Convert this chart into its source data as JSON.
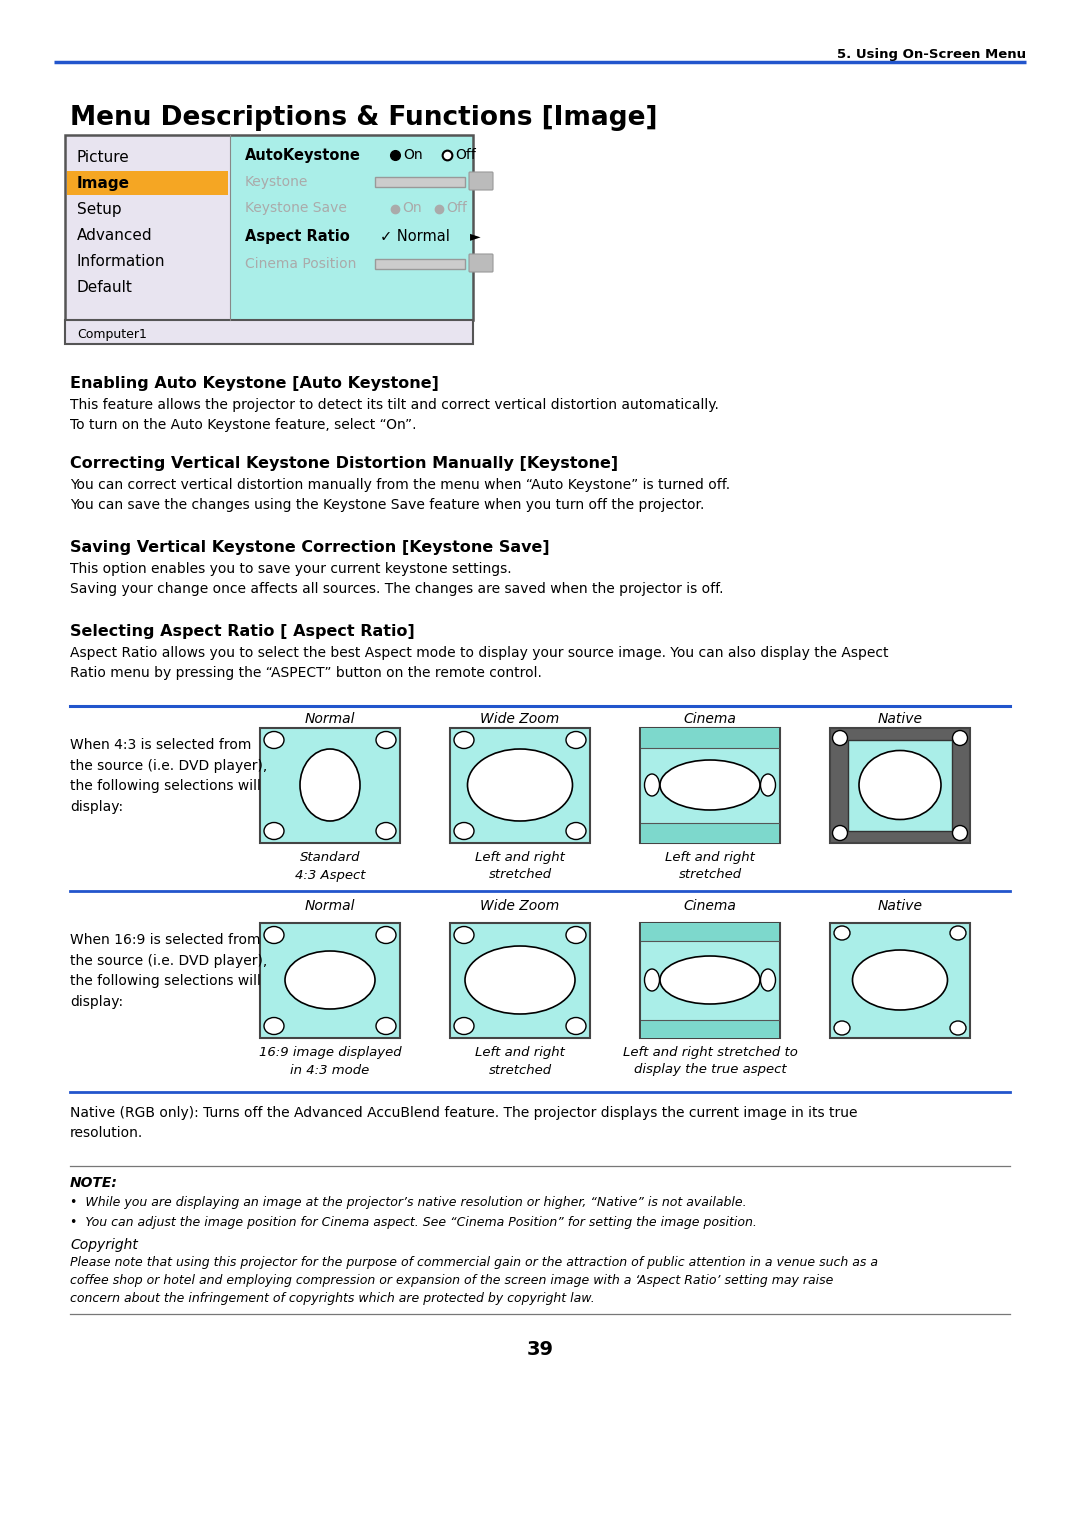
{
  "page_header": "5. Using On-Screen Menu",
  "main_title": "Menu Descriptions & Functions [Image]",
  "section1_title": "Enabling Auto Keystone [Auto Keystone]",
  "section1_body": "This feature allows the projector to detect its tilt and correct vertical distortion automatically.\nTo turn on the Auto Keystone feature, select “On”.",
  "section2_title": "Correcting Vertical Keystone Distortion Manually [Keystone]",
  "section2_body": "You can correct vertical distortion manually from the menu when “Auto Keystone” is turned off.\nYou can save the changes using the Keystone Save feature when you turn off the projector.",
  "section3_title": "Saving Vertical Keystone Correction [Keystone Save]",
  "section3_body": "This option enables you to save your current keystone settings.\nSaving your change once affects all sources. The changes are saved when the projector is off.",
  "section4_title": "Selecting Aspect Ratio [ Aspect Ratio]",
  "section4_body": "Aspect Ratio allows you to select the best Aspect mode to display your source image. You can also display the Aspect\nRatio menu by pressing the “ASPECT” button on the remote control.",
  "table_col_headers": [
    "Normal",
    "Wide Zoom",
    "Cinema",
    "Native"
  ],
  "row1_label": "When 4:3 is selected from\nthe source (i.e. DVD player),\nthe following selections will\ndisplay:",
  "row1_captions": [
    "Standard\n4:3 Aspect",
    "Left and right\nstretched",
    "Left and right\nstretched",
    ""
  ],
  "row2_label": "When 16:9 is selected from\nthe source (i.e. DVD player),\nthe following selections will\ndisplay:",
  "row2_captions": [
    "16:9 image displayed\nin 4:3 mode",
    "Left and right\nstretched",
    "Left and right stretched to\ndisplay the true aspect",
    ""
  ],
  "native_note": "Native (RGB only): Turns off the Advanced AccuBlend feature. The projector displays the current image in its true\nresolution.",
  "note_title": "NOTE:",
  "note_bullets": [
    "•  While you are displaying an image at the projector’s native resolution or higher, “Native” is not available.",
    "•  You can adjust the image position for Cinema aspect. See “Cinema Position” for setting the image position."
  ],
  "copyright_title": "Copyright",
  "copyright_body": "Please note that using this projector for the purpose of commercial gain or the attraction of public attention in a venue such as a\ncoffee shop or hotel and employing compression or expansion of the screen image with a ‘Aspect Ratio’ setting may raise\nconcern about the infringement of copyrights which are protected by copyright law.",
  "page_number": "39",
  "bg_color": "#ffffff",
  "header_line_color": "#2255cc",
  "menu_bg_left": "#e8e4f0",
  "menu_bg_right": "#aaeee8",
  "menu_highlight": "#f5a623",
  "menu_text_gray": "#aaaaaa",
  "table_line_color": "#2255cc",
  "native_bg": "#606060",
  "aspect_cyan": "#aaeee8"
}
